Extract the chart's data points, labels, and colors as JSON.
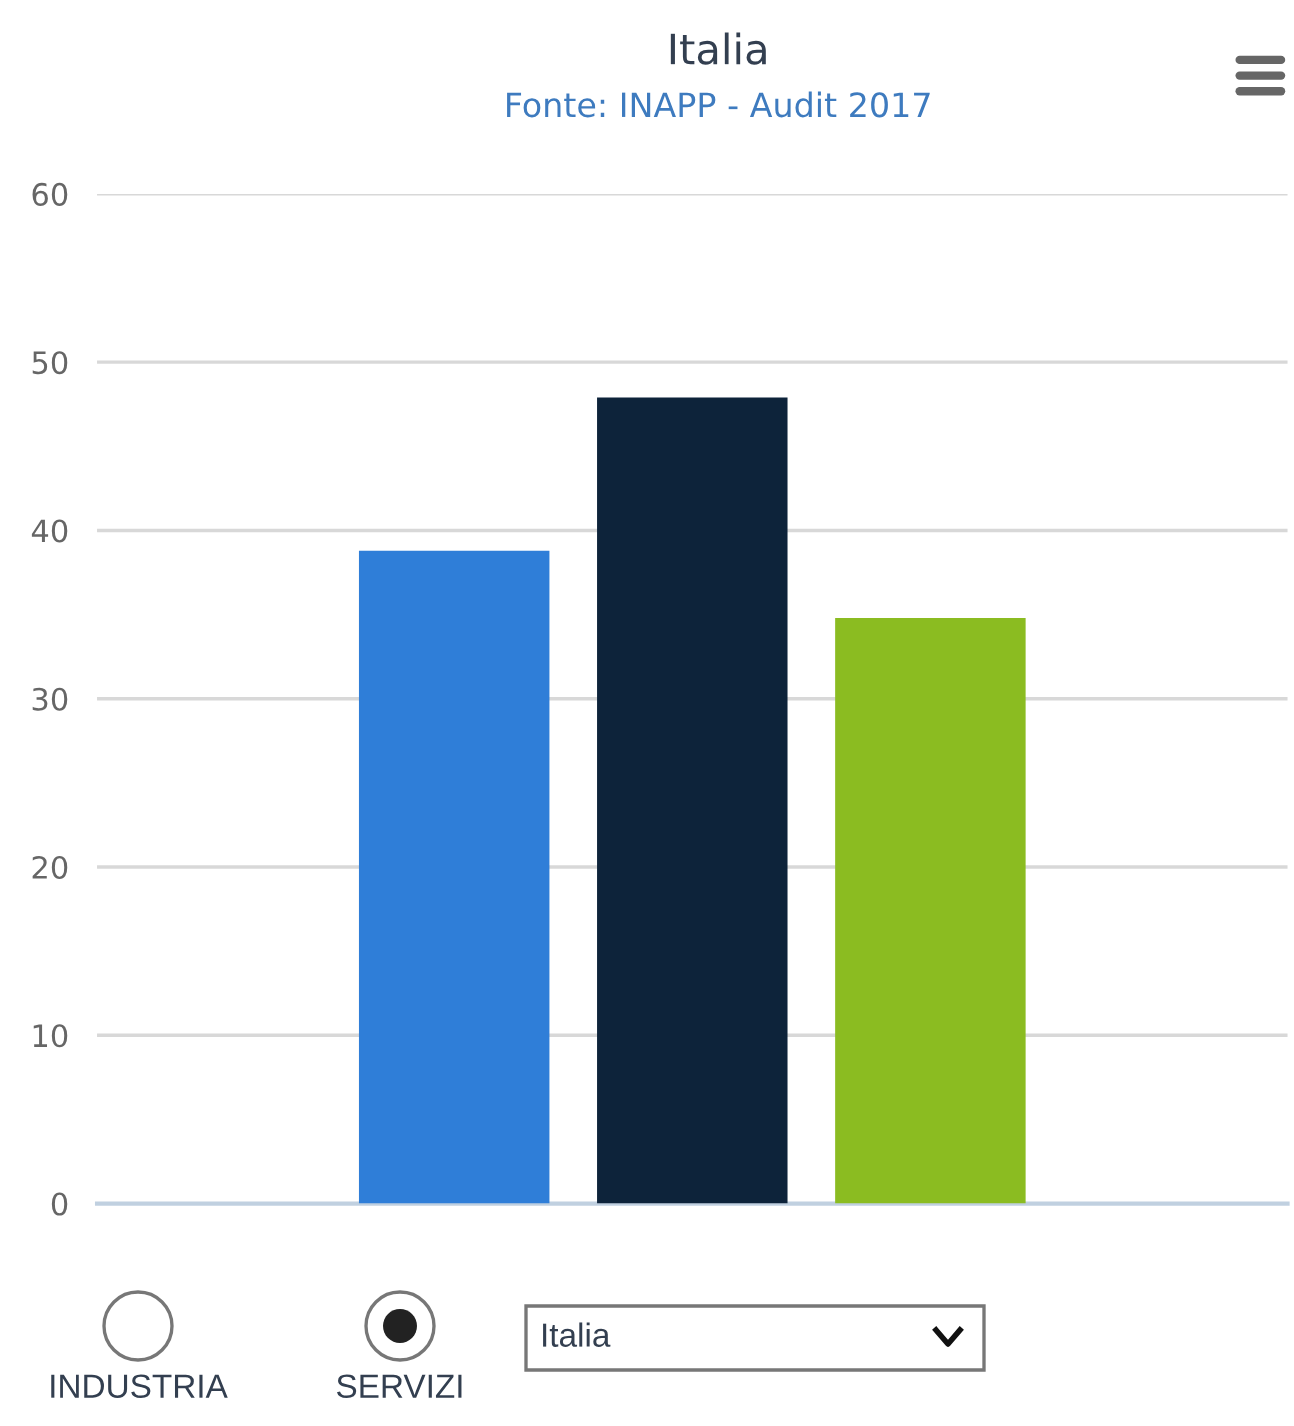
{
  "chart_data": {
    "type": "bar",
    "title": "Italia",
    "subtitle": "Fonte: INAPP - Audit 2017",
    "categories": [
      null,
      null,
      null
    ],
    "values": [
      38.8,
      47.9,
      34.8
    ],
    "colors": [
      "#2f7ed8",
      "#0d233a",
      "#8bbc21"
    ],
    "ylim": [
      0,
      60
    ],
    "yticks": [
      0,
      10,
      20,
      30,
      40,
      50,
      60
    ],
    "grid": "y",
    "legend": false,
    "annotations": [
      "INDUSTRIA",
      "SERVIZI",
      "Italia"
    ]
  }
}
